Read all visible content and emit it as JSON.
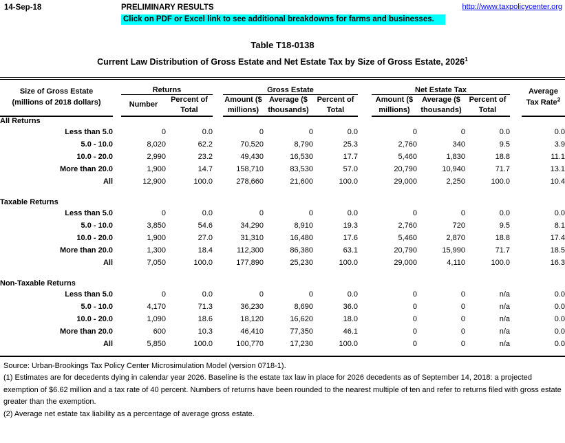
{
  "page": {
    "date": "14-Sep-18",
    "preliminary_label": "PRELIMINARY RESULTS",
    "site_link": "http://www.taxpolicycenter.org",
    "banner_note": "Click on PDF or Excel link to see additional breakdowns for farms and businesses.",
    "colors": {
      "banner_bg": "#00FFFF",
      "link_blue": "#0000FF"
    }
  },
  "title": "Table T18-0138",
  "subtitle": "Current Law Distribution of Gross Estate and Net Estate Tax by Size of Gross Estate, 2026",
  "subtitle_sup": "1",
  "table": {
    "row_header_line1": "Size of Gross Estate",
    "row_header_line2": "(millions of 2018 dollars)",
    "groups": [
      "Returns",
      "Gross Estate",
      "Net Estate Tax"
    ],
    "columns": [
      "Number",
      "Percent of Total",
      "Amount ($ millions)",
      "Average ($ thousands)",
      "Percent of Total",
      "Amount ($ millions)",
      "Average ($ thousands)",
      "Percent of Total"
    ],
    "last_column": {
      "line1": "Average",
      "line2": "Tax Rate",
      "sup": "2"
    },
    "sections": [
      {
        "name": "All Returns",
        "rows": [
          {
            "label": "Less than 5.0",
            "values": [
              "0",
              "0.0",
              "0",
              "0",
              "0.0",
              "0",
              "0",
              "0.0",
              "0.0"
            ]
          },
          {
            "label": "5.0 - 10.0",
            "values": [
              "8,020",
              "62.2",
              "70,520",
              "8,790",
              "25.3",
              "2,760",
              "340",
              "9.5",
              "3.9"
            ]
          },
          {
            "label": "10.0 - 20.0",
            "values": [
              "2,990",
              "23.2",
              "49,430",
              "16,530",
              "17.7",
              "5,460",
              "1,830",
              "18.8",
              "11.1"
            ]
          },
          {
            "label": "More than 20.0",
            "values": [
              "1,900",
              "14.7",
              "158,710",
              "83,530",
              "57.0",
              "20,790",
              "10,940",
              "71.7",
              "13.1"
            ]
          },
          {
            "label": "All",
            "values": [
              "12,900",
              "100.0",
              "278,660",
              "21,600",
              "100.0",
              "29,000",
              "2,250",
              "100.0",
              "10.4"
            ]
          }
        ]
      },
      {
        "name": "Taxable Returns",
        "rows": [
          {
            "label": "Less than 5.0",
            "values": [
              "0",
              "0.0",
              "0",
              "0",
              "0.0",
              "0",
              "0",
              "0.0",
              "0.0"
            ]
          },
          {
            "label": "5.0 - 10.0",
            "values": [
              "3,850",
              "54.6",
              "34,290",
              "8,910",
              "19.3",
              "2,760",
              "720",
              "9.5",
              "8.1"
            ]
          },
          {
            "label": "10.0 - 20.0",
            "values": [
              "1,900",
              "27.0",
              "31,310",
              "16,480",
              "17.6",
              "5,460",
              "2,870",
              "18.8",
              "17.4"
            ]
          },
          {
            "label": "More than 20.0",
            "values": [
              "1,300",
              "18.4",
              "112,300",
              "86,380",
              "63.1",
              "20,790",
              "15,990",
              "71.7",
              "18.5"
            ]
          },
          {
            "label": "All",
            "values": [
              "7,050",
              "100.0",
              "177,890",
              "25,230",
              "100.0",
              "29,000",
              "4,110",
              "100.0",
              "16.3"
            ]
          }
        ]
      },
      {
        "name": "Non-Taxable Returns",
        "rows": [
          {
            "label": "Less than 5.0",
            "values": [
              "0",
              "0.0",
              "0",
              "0",
              "0.0",
              "0",
              "0",
              "n/a",
              "0.0"
            ]
          },
          {
            "label": "5.0 - 10.0",
            "values": [
              "4,170",
              "71.3",
              "36,230",
              "8,690",
              "36.0",
              "0",
              "0",
              "n/a",
              "0.0"
            ]
          },
          {
            "label": "10.0 - 20.0",
            "values": [
              "1,090",
              "18.6",
              "18,120",
              "16,620",
              "18.0",
              "0",
              "0",
              "n/a",
              "0.0"
            ]
          },
          {
            "label": "More than 20.0",
            "values": [
              "600",
              "10.3",
              "46,410",
              "77,350",
              "46.1",
              "0",
              "0",
              "n/a",
              "0.0"
            ]
          },
          {
            "label": "All",
            "values": [
              "5,850",
              "100.0",
              "100,770",
              "17,230",
              "100.0",
              "0",
              "0",
              "n/a",
              "0.0"
            ]
          }
        ]
      }
    ]
  },
  "footnotes": {
    "source": "Source: Urban-Brookings Tax Policy Center Microsimulation Model (version 0718-1).",
    "notes": [
      "(1) Estimates are for decedents dying in calendar year 2026. Baseline is the estate tax law in place for 2026 decedents as of September 14, 2018: a projected exemption of $6.62 million and a tax rate of 40 percent. Numbers of returns have been rounded to the nearest multiple of ten and refer to returns filed with gross estate greater than the exemption.",
      "(2) Average net estate tax liability as a percentage of average gross estate."
    ]
  }
}
